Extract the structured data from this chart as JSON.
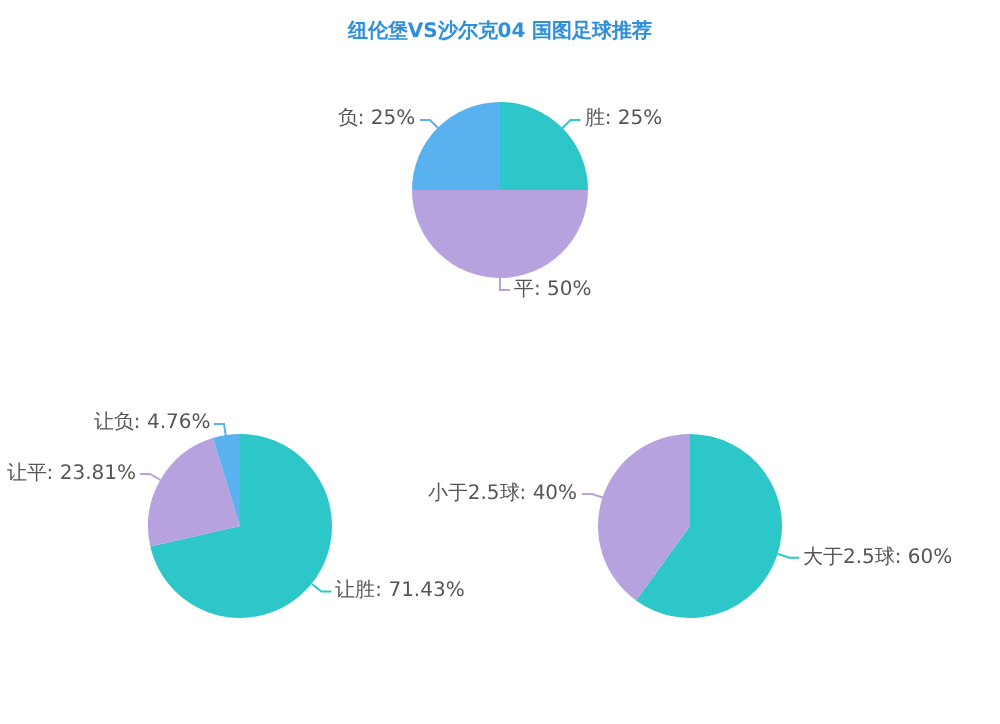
{
  "chart_data": [
    {
      "type": "pie",
      "title": "纽伦堡VS沙尔克04 国图足球推荐",
      "categories": [
        "胜",
        "平",
        "负"
      ],
      "values": [
        25,
        50,
        25
      ],
      "colors": [
        "#2ec7c9",
        "#b6a2de",
        "#5ab1ef"
      ],
      "value_labels": [
        ": 25%",
        ": 50%",
        ": 25%"
      ],
      "legend": false
    },
    {
      "type": "pie",
      "categories": [
        "让胜",
        "让平",
        "让负"
      ],
      "values": [
        71.43,
        23.81,
        4.76
      ],
      "colors": [
        "#2ec7c9",
        "#b6a2de",
        "#5ab1ef"
      ],
      "value_labels": [
        ": 71.43%",
        ": 23.81%",
        ": 4.76%"
      ],
      "legend": false
    },
    {
      "type": "pie",
      "categories": [
        "大于2.5球",
        "小于2.5球"
      ],
      "values": [
        60,
        40
      ],
      "colors": [
        "#2ec7c9",
        "#b6a2de"
      ],
      "value_labels": [
        ": 60%",
        ": 40%"
      ],
      "legend": false
    }
  ]
}
